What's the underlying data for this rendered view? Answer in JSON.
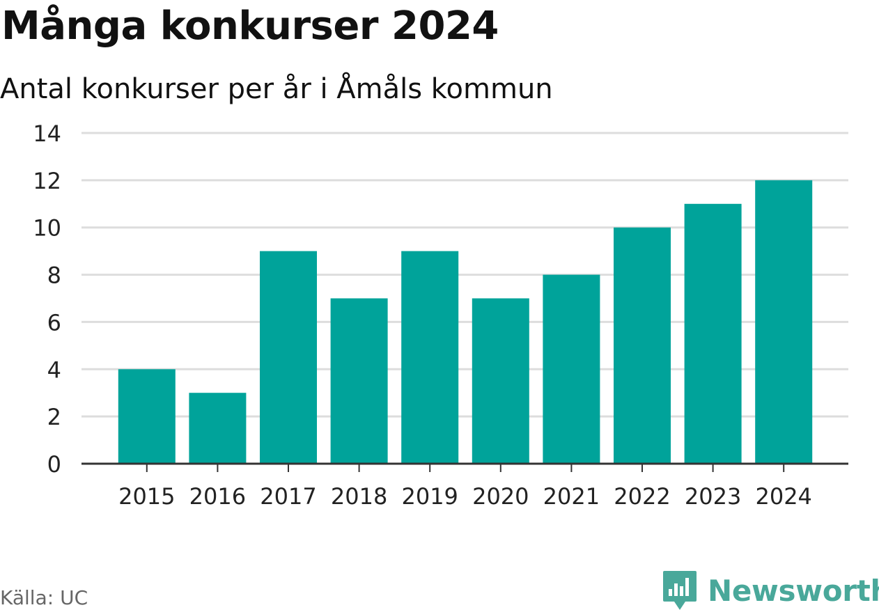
{
  "title": "Många konkurser 2024",
  "subtitle": "Antal konkurser per år i Åmåls kommun",
  "source": "Källa: UC",
  "brand": "Newsworthy",
  "colors": {
    "bar": "#00a39a",
    "grid": "#dddddd",
    "axis": "#333333",
    "brand": "#49a89a"
  },
  "chart_data": {
    "type": "bar",
    "categories": [
      "2015",
      "2016",
      "2017",
      "2018",
      "2019",
      "2020",
      "2021",
      "2022",
      "2023",
      "2024"
    ],
    "values": [
      4,
      3,
      9,
      7,
      9,
      7,
      8,
      10,
      11,
      12
    ],
    "title": "Många konkurser 2024",
    "subtitle": "Antal konkurser per år i Åmåls kommun",
    "ylim": [
      0,
      14
    ],
    "yticks": [
      0,
      2,
      4,
      6,
      8,
      10,
      12,
      14
    ],
    "grid": true
  }
}
